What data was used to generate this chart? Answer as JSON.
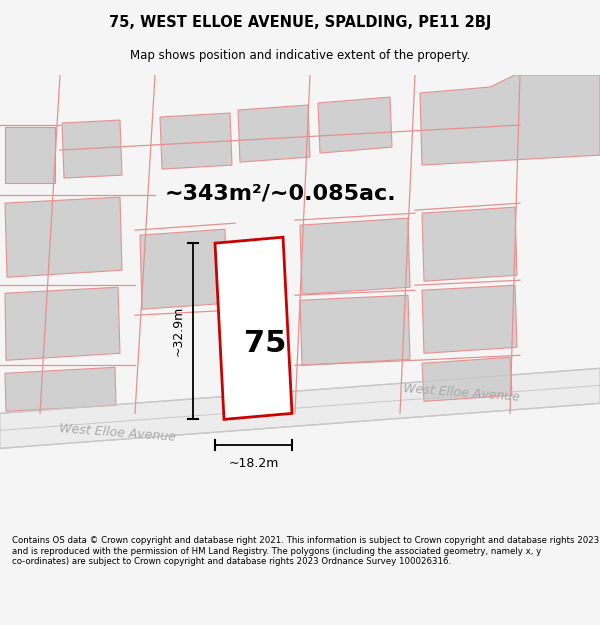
{
  "title_line1": "75, WEST ELLOE AVENUE, SPALDING, PE11 2BJ",
  "title_line2": "Map shows position and indicative extent of the property.",
  "area_text": "~343m²/~0.085ac.",
  "number_label": "75",
  "dim_width": "~18.2m",
  "dim_height": "~32.9m",
  "street_label": "West Elloe Avenue",
  "footer_text": "Contains OS data © Crown copyright and database right 2021. This information is subject to Crown copyright and database rights 2023 and is reproduced with the permission of HM Land Registry. The polygons (including the associated geometry, namely x, y co-ordinates) are subject to Crown copyright and database rights 2023 Ordnance Survey 100026316.",
  "bg_color": "#f5f5f5",
  "map_bg": "#ffffff",
  "plot_outline_color": "#cc0000",
  "surr_fill": "#d0d0d0",
  "surr_line": "#e89090",
  "road_line_color": "#c8c8c8"
}
